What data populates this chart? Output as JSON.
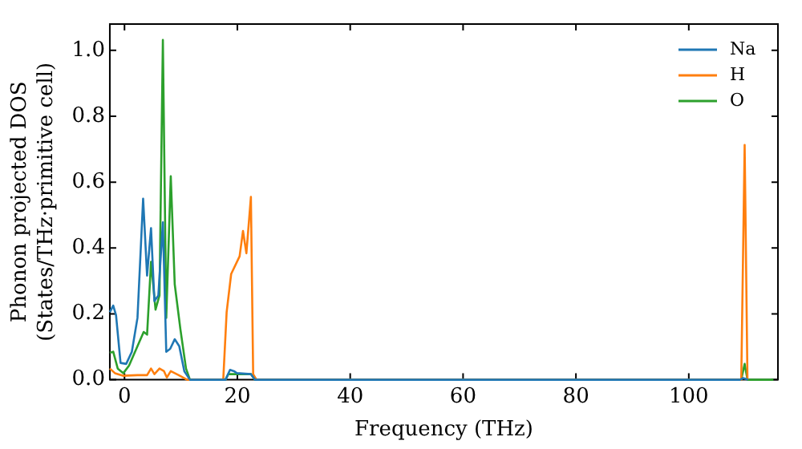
{
  "chart_data": {
    "type": "line",
    "xlabel": "Frequency (THz)",
    "ylabel": "Phonon projected DOS\n(States/THz·primitive cell)",
    "xlim": [
      -2.6,
      115.8
    ],
    "ylim": [
      0,
      1.08
    ],
    "xticks": [
      0,
      20,
      40,
      60,
      80,
      100
    ],
    "yticks": [
      {
        "value": 0,
        "label": "0.0"
      },
      {
        "value": 0.2,
        "label": "0.2"
      },
      {
        "value": 0.4,
        "label": "0.4"
      },
      {
        "value": 0.6,
        "label": "0.6"
      },
      {
        "value": 0.8,
        "label": "0.8"
      },
      {
        "value": 1,
        "label": "1.0"
      }
    ],
    "grid": false,
    "legend": "top right",
    "marker": "none",
    "line_style": "solid",
    "series": [
      {
        "name": "Na",
        "color": "#1f77b4",
        "x": [
          -2.6,
          -2.0,
          -1.5,
          -0.7,
          0.3,
          1.3,
          2.3,
          3.3,
          4.0,
          4.7,
          5.3,
          6.0,
          6.8,
          7.4,
          8.1,
          8.9,
          9.7,
          10.6,
          11.6,
          17.9,
          18.7,
          19.4,
          19.9,
          22.4,
          23.1,
          109.1,
          109.6,
          110.5
        ],
        "values": [
          0.205,
          0.225,
          0.196,
          0.051,
          0.048,
          0.085,
          0.188,
          0.55,
          0.316,
          0.46,
          0.239,
          0.256,
          0.478,
          0.085,
          0.094,
          0.123,
          0.102,
          0.026,
          0,
          0,
          0.03,
          0.026,
          0.02,
          0.017,
          0,
          0,
          0.005,
          0
        ]
      },
      {
        "name": "H",
        "color": "#ff7f0e",
        "x": [
          -2.6,
          -1.7,
          -0.2,
          2.3,
          4.0,
          4.7,
          5.3,
          6.2,
          7.0,
          7.5,
          8.2,
          9.6,
          11.1,
          17.5,
          18.1,
          18.9,
          20.4,
          21.0,
          21.6,
          22.4,
          22.8,
          23.4,
          109.3,
          109.9,
          110.4
        ],
        "values": [
          0.034,
          0.02,
          0.012,
          0.014,
          0.014,
          0.034,
          0.017,
          0.034,
          0.026,
          0.007,
          0.026,
          0.014,
          0,
          0,
          0.205,
          0.321,
          0.375,
          0.452,
          0.384,
          0.555,
          0.017,
          0,
          0,
          0.713,
          0
        ]
      },
      {
        "name": "O",
        "color": "#2ca02c",
        "x": [
          -2.6,
          -2.0,
          -1.2,
          -0.2,
          0.8,
          2.3,
          3.4,
          4.0,
          4.7,
          5.5,
          6.2,
          6.8,
          7.4,
          8.2,
          8.9,
          9.9,
          10.9,
          11.6,
          17.9,
          18.4,
          22.4,
          23.1,
          109.3,
          109.9,
          110.4,
          115.0
        ],
        "values": [
          0.082,
          0.085,
          0.034,
          0.02,
          0.043,
          0.102,
          0.145,
          0.137,
          0.358,
          0.213,
          0.256,
          1.032,
          0.188,
          0.618,
          0.29,
          0.154,
          0.034,
          0,
          0,
          0.017,
          0.017,
          0,
          0,
          0.048,
          0,
          0
        ]
      }
    ]
  }
}
